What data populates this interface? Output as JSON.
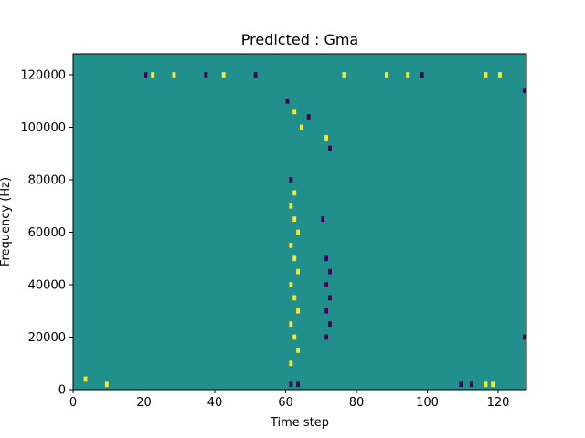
{
  "chart_data": {
    "type": "heatmap",
    "title": "Predicted : Gma",
    "xlabel": "Time step",
    "ylabel": "Frequency (Hz)",
    "xlim": [
      0,
      128
    ],
    "ylim": [
      0,
      128000
    ],
    "x_ticks": [
      0,
      20,
      40,
      60,
      80,
      100,
      120
    ],
    "y_ticks": [
      0,
      20000,
      40000,
      60000,
      80000,
      100000,
      120000
    ],
    "x_tick_labels": [
      "0",
      "20",
      "40",
      "60",
      "80",
      "100",
      "120"
    ],
    "y_tick_labels": [
      "0",
      "20000",
      "40000",
      "60000",
      "80000",
      "100000",
      "120000"
    ],
    "value_levels": [
      -1,
      0,
      1
    ],
    "colormap": {
      "-1": "#440154",
      "0": "#21908d",
      "1": "#fde725"
    },
    "grid": false,
    "background_value": 0,
    "cells": [
      {
        "x": 3,
        "y": 4000,
        "value": 1
      },
      {
        "x": 9,
        "y": 2000,
        "value": 1
      },
      {
        "x": 20,
        "y": 120000,
        "value": -1
      },
      {
        "x": 22,
        "y": 120000,
        "value": 1
      },
      {
        "x": 28,
        "y": 120000,
        "value": 1
      },
      {
        "x": 37,
        "y": 120000,
        "value": -1
      },
      {
        "x": 42,
        "y": 120000,
        "value": 1
      },
      {
        "x": 51,
        "y": 120000,
        "value": -1
      },
      {
        "x": 76,
        "y": 120000,
        "value": 1
      },
      {
        "x": 88,
        "y": 120000,
        "value": 1
      },
      {
        "x": 94,
        "y": 120000,
        "value": 1
      },
      {
        "x": 98,
        "y": 120000,
        "value": -1
      },
      {
        "x": 116,
        "y": 120000,
        "value": 1
      },
      {
        "x": 120,
        "y": 120000,
        "value": 1
      },
      {
        "x": 60,
        "y": 110000,
        "value": -1
      },
      {
        "x": 62,
        "y": 106000,
        "value": 1
      },
      {
        "x": 66,
        "y": 104000,
        "value": -1
      },
      {
        "x": 64,
        "y": 100000,
        "value": 1
      },
      {
        "x": 71,
        "y": 96000,
        "value": 1
      },
      {
        "x": 72,
        "y": 92000,
        "value": -1
      },
      {
        "x": 61,
        "y": 80000,
        "value": -1
      },
      {
        "x": 62,
        "y": 75000,
        "value": 1
      },
      {
        "x": 61,
        "y": 70000,
        "value": 1
      },
      {
        "x": 62,
        "y": 65000,
        "value": 1
      },
      {
        "x": 63,
        "y": 60000,
        "value": 1
      },
      {
        "x": 61,
        "y": 55000,
        "value": 1
      },
      {
        "x": 62,
        "y": 50000,
        "value": 1
      },
      {
        "x": 63,
        "y": 45000,
        "value": 1
      },
      {
        "x": 61,
        "y": 40000,
        "value": 1
      },
      {
        "x": 62,
        "y": 35000,
        "value": 1
      },
      {
        "x": 63,
        "y": 30000,
        "value": 1
      },
      {
        "x": 61,
        "y": 25000,
        "value": 1
      },
      {
        "x": 62,
        "y": 20000,
        "value": 1
      },
      {
        "x": 63,
        "y": 15000,
        "value": 1
      },
      {
        "x": 61,
        "y": 10000,
        "value": 1
      },
      {
        "x": 70,
        "y": 65000,
        "value": -1
      },
      {
        "x": 71,
        "y": 50000,
        "value": -1
      },
      {
        "x": 72,
        "y": 45000,
        "value": -1
      },
      {
        "x": 71,
        "y": 40000,
        "value": -1
      },
      {
        "x": 72,
        "y": 35000,
        "value": -1
      },
      {
        "x": 71,
        "y": 30000,
        "value": -1
      },
      {
        "x": 72,
        "y": 25000,
        "value": -1
      },
      {
        "x": 71,
        "y": 20000,
        "value": -1
      },
      {
        "x": 61,
        "y": 2000,
        "value": -1
      },
      {
        "x": 63,
        "y": 2000,
        "value": -1
      },
      {
        "x": 109,
        "y": 2000,
        "value": -1
      },
      {
        "x": 112,
        "y": 2000,
        "value": -1
      },
      {
        "x": 116,
        "y": 2000,
        "value": 1
      },
      {
        "x": 118,
        "y": 2000,
        "value": 1
      },
      {
        "x": 127,
        "y": 114000,
        "value": -1
      },
      {
        "x": 127,
        "y": 20000,
        "value": -1
      }
    ]
  }
}
